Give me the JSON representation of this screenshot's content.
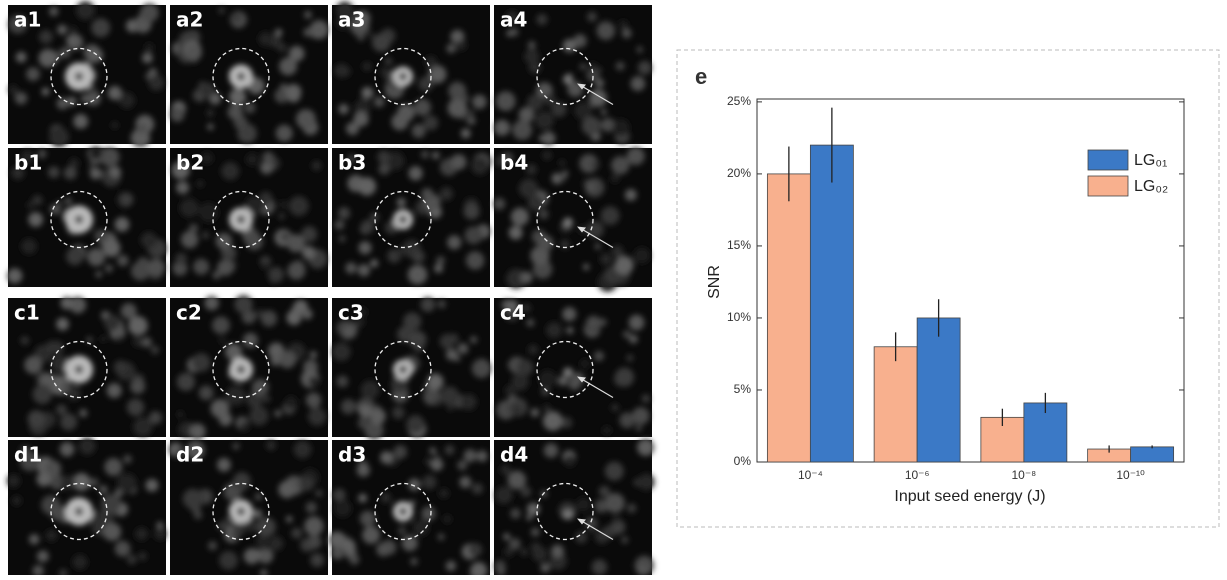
{
  "panels": [
    "a1",
    "a2",
    "a3",
    "a4",
    "b1",
    "b2",
    "b3",
    "b4",
    "c1",
    "c2",
    "c3",
    "c4",
    "d1",
    "d2",
    "d3",
    "d4"
  ],
  "chart_data": {
    "type": "bar",
    "panel_label": "e",
    "y_label": "SNR",
    "x_label": "Input seed energy (J)",
    "categories": [
      "10⁻⁴",
      "10⁻⁶",
      "10⁻⁸",
      "10⁻¹⁰"
    ],
    "series": [
      {
        "name": "LG₀₂",
        "color": "#f8b08e",
        "values": [
          20,
          8,
          3.1,
          0.9
        ],
        "errors": [
          1.9,
          1.0,
          0.6,
          0.25
        ]
      },
      {
        "name": "LG₀₁",
        "color": "#3b79c6",
        "values": [
          22,
          10,
          4.1,
          1.05
        ],
        "errors": [
          2.6,
          1.3,
          0.7,
          0.1
        ]
      }
    ],
    "ylim": [
      0,
      25.2
    ],
    "yticks": [
      {
        "value": 0,
        "label": "0%"
      },
      {
        "value": 5,
        "label": "5%"
      },
      {
        "value": 10,
        "label": "10%"
      },
      {
        "value": 15,
        "label": "15%"
      },
      {
        "value": 20,
        "label": "20%"
      },
      {
        "value": 25,
        "label": "25%"
      }
    ],
    "legend": "upper right"
  }
}
